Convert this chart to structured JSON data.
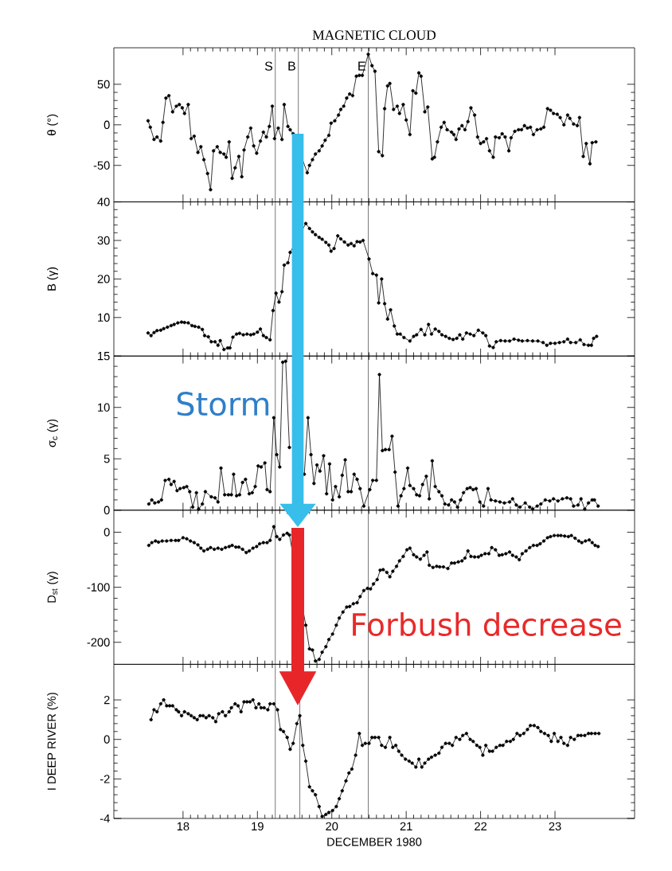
{
  "chart_data": [
    {
      "type": "line",
      "title": "MAGNETIC CLOUD",
      "ylabel": "θ (°)",
      "color": "#000000",
      "marker": "circle",
      "line_style": "solid",
      "tick_labels": "y",
      "xlim": [
        17.07,
        24.07
      ],
      "ylim": [
        -95,
        95
      ],
      "xticks": [
        18,
        19,
        20,
        21,
        22,
        23
      ],
      "yticks": [
        -50,
        0,
        50
      ],
      "ref_lines": [
        {
          "axis": "x",
          "value": 19.24,
          "label": "S"
        },
        {
          "axis": "x",
          "value": 19.55,
          "label": "B"
        },
        {
          "axis": "x",
          "value": 20.49,
          "label": "E"
        }
      ],
      "x": [
        17.53,
        17.56,
        17.61,
        17.65,
        17.7,
        17.73,
        17.77,
        17.81,
        17.86,
        17.91,
        17.95,
        17.99,
        18.02,
        18.07,
        18.11,
        18.15,
        18.2,
        18.24,
        18.28,
        18.33,
        18.37,
        18.41,
        18.46,
        18.5,
        18.55,
        18.58,
        18.62,
        18.66,
        18.7,
        18.75,
        18.79,
        18.82,
        18.87,
        18.91,
        18.95,
        18.99,
        19.04,
        19.08,
        19.12,
        19.16,
        19.2,
        19.23,
        19.28,
        19.33,
        19.36,
        19.41,
        19.44,
        19.48,
        19.67,
        19.7,
        19.74,
        19.78,
        19.83,
        19.87,
        19.91,
        19.96,
        19.99,
        20.04,
        20.09,
        20.12,
        20.16,
        20.2,
        20.24,
        20.28,
        20.33,
        20.37,
        20.41,
        20.49,
        20.54,
        20.58,
        20.63,
        20.68,
        20.71,
        20.75,
        20.78,
        20.83,
        20.88,
        20.91,
        20.96,
        21.0,
        21.05,
        21.09,
        21.13,
        21.17,
        21.2,
        21.25,
        21.29,
        21.35,
        21.38,
        21.42,
        21.47,
        21.51,
        21.55,
        21.61,
        21.64,
        21.67,
        21.71,
        21.75,
        21.79,
        21.83,
        21.87,
        21.92,
        21.96,
        22.0,
        22.04,
        22.08,
        22.12,
        22.17,
        22.2,
        22.25,
        22.29,
        22.33,
        22.38,
        22.41,
        22.46,
        22.51,
        22.55,
        22.59,
        22.63,
        22.67,
        22.71,
        22.76,
        22.81,
        22.85,
        22.9,
        22.94,
        22.98,
        23.03,
        23.07,
        23.12,
        23.17,
        23.2,
        23.25,
        23.3,
        23.33,
        23.38,
        23.42,
        23.47,
        23.5,
        23.55
      ],
      "values": [
        5,
        -3,
        -18,
        -15,
        -20,
        3,
        33,
        36,
        16,
        23,
        25,
        21,
        14,
        25,
        -17,
        -14,
        -34,
        -27,
        -43,
        -60,
        -80,
        -32,
        -27,
        -34,
        -36,
        -40,
        -21,
        -66,
        -53,
        -39,
        -64,
        -31,
        -15,
        -4,
        -26,
        -35,
        -20,
        -9,
        -15,
        -2,
        23,
        -17,
        -4,
        -18,
        25,
        -2,
        -6,
        -11,
        -59,
        -50,
        -43,
        -36,
        -32,
        -26,
        -19,
        -13,
        2,
        5,
        12,
        19,
        23,
        33,
        38,
        36,
        60,
        61,
        61,
        87,
        73,
        66,
        -33,
        -38,
        20,
        48,
        51,
        19,
        23,
        14,
        25,
        6,
        -12,
        42,
        39,
        64,
        60,
        16,
        22,
        -42,
        -40,
        -21,
        -3,
        3,
        -6,
        -9,
        -12,
        -18,
        -5,
        -1,
        -6,
        4,
        21,
        12,
        -15,
        -23,
        -21,
        -17,
        -32,
        -40,
        -15,
        -16,
        -11,
        -15,
        -32,
        -16,
        -8,
        -6,
        -6,
        -1,
        -4,
        -3,
        -12,
        -6,
        -5,
        -3,
        20,
        18,
        14,
        13,
        9,
        0,
        12,
        8,
        1,
        -1,
        9,
        -39,
        -23,
        -48,
        -22,
        -21
      ]
    },
    {
      "type": "line",
      "ylabel": "B (γ)",
      "color": "#000000",
      "marker": "circle",
      "line_style": "solid",
      "tick_labels": "y",
      "xlim": [
        17.07,
        24.07
      ],
      "ylim": [
        0,
        40
      ],
      "xticks": [
        18,
        19,
        20,
        21,
        22,
        23
      ],
      "yticks": [
        10,
        20,
        30,
        40
      ],
      "ref_lines": [
        {
          "axis": "x",
          "value": 19.24
        },
        {
          "axis": "x",
          "value": 20.49
        }
      ],
      "x": [
        17.53,
        17.57,
        17.61,
        17.65,
        17.7,
        17.74,
        17.79,
        17.84,
        17.88,
        17.93,
        17.98,
        18.02,
        18.07,
        18.12,
        18.16,
        18.21,
        18.26,
        18.29,
        18.34,
        18.38,
        18.43,
        18.47,
        18.5,
        18.55,
        18.6,
        18.63,
        18.67,
        18.72,
        18.76,
        18.81,
        18.86,
        18.91,
        18.95,
        19.0,
        19.04,
        19.08,
        19.12,
        19.17,
        19.21,
        19.25,
        19.29,
        19.33,
        19.36,
        19.41,
        19.44,
        19.65,
        19.7,
        19.74,
        19.78,
        19.83,
        19.87,
        19.92,
        19.96,
        19.99,
        20.03,
        20.08,
        20.12,
        20.17,
        20.22,
        20.26,
        20.3,
        20.34,
        20.38,
        20.42,
        20.5,
        20.55,
        20.6,
        20.63,
        20.67,
        20.71,
        20.75,
        20.79,
        20.84,
        20.88,
        20.92,
        20.97,
        21.05,
        21.1,
        21.14,
        21.2,
        21.25,
        21.3,
        21.34,
        21.39,
        21.44,
        21.48,
        21.53,
        21.58,
        21.63,
        21.68,
        21.72,
        21.76,
        21.81,
        21.86,
        21.91,
        21.97,
        22.03,
        22.07,
        22.12,
        22.17,
        22.21,
        22.27,
        22.33,
        22.39,
        22.45,
        22.51,
        22.56,
        22.63,
        22.7,
        22.77,
        22.84,
        22.89,
        22.94,
        23.0,
        23.06,
        23.12,
        23.17,
        23.21,
        23.28,
        23.34,
        23.39,
        23.45,
        23.49,
        23.52,
        23.56
      ],
      "values": [
        6.0,
        5.3,
        6.1,
        6.6,
        6.7,
        7.1,
        7.5,
        7.9,
        8.2,
        8.6,
        8.8,
        8.7,
        8.6,
        7.9,
        7.7,
        7.5,
        6.9,
        5.3,
        5.0,
        3.7,
        3.7,
        2.8,
        4.0,
        1.7,
        2.1,
        2.1,
        4.9,
        5.7,
        5.9,
        5.5,
        5.7,
        5.5,
        5.7,
        6.2,
        7.0,
        5.3,
        4.8,
        4.2,
        11.8,
        16.3,
        14.0,
        16.7,
        23.6,
        24.2,
        26.9,
        34.4,
        33.1,
        32.2,
        31.5,
        30.8,
        30.3,
        29.5,
        28.8,
        27.2,
        27.9,
        31.2,
        30.4,
        29.6,
        28.8,
        29.2,
        28.6,
        29.7,
        29.6,
        30.0,
        25.2,
        21.4,
        21.0,
        13.8,
        20.0,
        13.6,
        9.6,
        12.0,
        7.8,
        5.7,
        5.7,
        4.8,
        3.9,
        5.1,
        5.5,
        6.9,
        5.5,
        8.2,
        5.7,
        7.0,
        6.4,
        5.5,
        5.1,
        4.6,
        4.3,
        4.6,
        5.5,
        4.4,
        6.0,
        5.7,
        5.3,
        6.7,
        6.0,
        5.3,
        2.6,
        2.2,
        3.7,
        4.0,
        3.9,
        3.9,
        4.4,
        4.1,
        3.9,
        4.0,
        3.9,
        3.9,
        3.5,
        2.8,
        3.3,
        3.3,
        3.5,
        3.7,
        4.4,
        3.5,
        3.5,
        4.2,
        3.0,
        2.8,
        2.8,
        4.6,
        5.1
      ]
    },
    {
      "type": "line",
      "ylabel": "σ$_{c}$ (γ)",
      "color": "#000000",
      "marker": "circle",
      "line_style": "solid",
      "tick_labels": "y",
      "xlim": [
        17.07,
        24.07
      ],
      "ylim": [
        0,
        15
      ],
      "xticks": [
        18,
        19,
        20,
        21,
        22,
        23
      ],
      "yticks": [
        0,
        5,
        10,
        15
      ],
      "ref_lines": [
        {
          "axis": "x",
          "value": 19.24
        },
        {
          "axis": "x",
          "value": 20.49
        }
      ],
      "annotations": [
        "Storm"
      ],
      "x": [
        17.54,
        17.58,
        17.62,
        17.67,
        17.71,
        17.76,
        17.81,
        17.84,
        17.88,
        17.92,
        17.96,
        18.01,
        18.05,
        18.09,
        18.13,
        18.18,
        18.21,
        18.26,
        18.3,
        18.38,
        18.43,
        18.47,
        18.51,
        18.56,
        18.61,
        18.65,
        18.68,
        18.72,
        18.76,
        18.8,
        18.84,
        18.89,
        18.93,
        18.97,
        19.01,
        19.05,
        19.1,
        19.13,
        19.17,
        19.22,
        19.26,
        19.3,
        19.34,
        19.38,
        19.43,
        19.47,
        19.63,
        19.68,
        19.72,
        19.76,
        19.8,
        19.84,
        19.89,
        19.93,
        19.97,
        20.01,
        20.05,
        20.1,
        20.14,
        20.18,
        20.22,
        20.26,
        20.3,
        20.34,
        20.38,
        20.43,
        20.51,
        20.55,
        20.6,
        20.64,
        20.68,
        20.72,
        20.77,
        20.81,
        20.85,
        20.89,
        20.93,
        20.97,
        21.02,
        21.05,
        21.1,
        21.14,
        21.18,
        21.22,
        21.27,
        21.31,
        21.35,
        21.39,
        21.44,
        21.48,
        21.52,
        21.57,
        21.61,
        21.65,
        21.69,
        21.73,
        21.77,
        21.82,
        21.86,
        21.9,
        21.94,
        21.99,
        22.04,
        22.1,
        22.14,
        22.2,
        22.26,
        22.32,
        22.39,
        22.43,
        22.48,
        22.53,
        22.6,
        22.66,
        22.7,
        22.76,
        22.81,
        22.87,
        22.93,
        22.98,
        23.04,
        23.1,
        23.16,
        23.21,
        23.25,
        23.31,
        23.35,
        23.4,
        23.45,
        23.5,
        23.53,
        23.58
      ],
      "values": [
        0.6,
        1.0,
        0.7,
        0.8,
        1.0,
        2.9,
        3.0,
        2.5,
        2.8,
        1.9,
        2.1,
        2.2,
        2.3,
        1.8,
        0.3,
        1.7,
        0.1,
        0.6,
        1.8,
        1.3,
        1.2,
        0.8,
        4.1,
        1.5,
        1.5,
        1.5,
        3.5,
        1.4,
        1.5,
        2.7,
        3.0,
        1.6,
        1.7,
        2.3,
        4.3,
        4.2,
        4.6,
        2.0,
        1.8,
        9.0,
        5.4,
        4.2,
        14.4,
        14.5,
        6.1,
        null,
        3.5,
        9.0,
        5.4,
        2.6,
        4.4,
        3.8,
        5.3,
        1.6,
        4.5,
        1.0,
        2.3,
        1.3,
        3.4,
        4.9,
        1.8,
        1.8,
        3.5,
        3.0,
        2.1,
        0.4,
        2.0,
        2.9,
        2.9,
        13.2,
        5.8,
        5.9,
        5.9,
        7.2,
        3.7,
        0.4,
        1.4,
        2.1,
        4.1,
        2.4,
        2.1,
        1.5,
        1.4,
        2.5,
        3.3,
        1.1,
        4.8,
        2.3,
        1.8,
        1.4,
        0.6,
        0.5,
        1.0,
        0.8,
        0.3,
        1.0,
        1.7,
        2.1,
        2.2,
        2.0,
        2.1,
        0.8,
        0.4,
        2.1,
        1.0,
        0.9,
        0.8,
        0.7,
        0.8,
        1.1,
        0.5,
        0.3,
        0.7,
        0.3,
        0.1,
        0.4,
        0.6,
        1.0,
        0.9,
        1.1,
        0.9,
        1.1,
        1.2,
        1.1,
        0.4,
        0.5,
        1.1,
        0.1,
        0.7,
        1.0,
        1.0,
        0.4
      ]
    },
    {
      "type": "line",
      "ylabel": "D$_{st}$ (γ)",
      "color": "#000000",
      "marker": "circle",
      "line_style": "solid",
      "tick_labels": "y",
      "xlim": [
        17.07,
        24.07
      ],
      "ylim": [
        -240,
        40
      ],
      "xticks": [
        18,
        19,
        20,
        21,
        22,
        23
      ],
      "yticks": [
        -200,
        -100,
        0
      ],
      "ref_lines": [
        {
          "axis": "x",
          "value": 19.24
        },
        {
          "axis": "x",
          "value": 20.49
        }
      ],
      "annotations": [
        "Forbush decrease"
      ],
      "x": [
        17.54,
        17.58,
        17.63,
        17.67,
        17.72,
        17.78,
        17.84,
        17.9,
        17.94,
        18.0,
        18.05,
        18.1,
        18.15,
        18.2,
        18.24,
        18.28,
        18.33,
        18.37,
        18.42,
        18.47,
        18.52,
        18.57,
        18.62,
        18.66,
        18.71,
        18.75,
        18.8,
        18.85,
        18.89,
        18.94,
        18.99,
        19.03,
        19.08,
        19.13,
        19.17,
        19.22,
        19.26,
        19.3,
        19.35,
        19.4,
        19.43,
        19.65,
        19.7,
        19.74,
        19.78,
        19.83,
        19.87,
        19.92,
        19.96,
        20.01,
        20.06,
        20.1,
        20.15,
        20.2,
        20.24,
        20.29,
        20.34,
        20.38,
        20.43,
        20.48,
        20.52,
        20.56,
        20.61,
        20.65,
        20.69,
        20.74,
        20.78,
        20.82,
        20.87,
        20.91,
        20.96,
        21.01,
        21.05,
        21.1,
        21.14,
        21.19,
        21.24,
        21.28,
        21.31,
        21.36,
        21.41,
        21.45,
        21.5,
        21.56,
        21.61,
        21.65,
        21.7,
        21.75,
        21.79,
        21.83,
        21.87,
        21.92,
        21.97,
        22.01,
        22.06,
        22.11,
        22.15,
        22.2,
        22.25,
        22.29,
        22.34,
        22.39,
        22.43,
        22.48,
        22.52,
        22.56,
        22.61,
        22.66,
        22.71,
        22.76,
        22.8,
        22.85,
        22.9,
        22.94,
        22.99,
        23.04,
        23.08,
        23.13,
        23.18,
        23.22,
        23.27,
        23.32,
        23.36,
        23.41,
        23.46,
        23.5,
        23.54,
        23.58
      ],
      "values": [
        -24,
        -19,
        -16,
        -18,
        -16,
        -16,
        -15,
        -15,
        -15,
        -10,
        -12,
        -16,
        -19,
        -23,
        -29,
        -34,
        -31,
        -28,
        -31,
        -29,
        -31,
        -28,
        -26,
        -24,
        -27,
        -27,
        -31,
        -37,
        -34,
        -29,
        -26,
        -21,
        -19,
        -19,
        -15,
        10,
        -8,
        -13,
        -5,
        -2,
        -5,
        -169,
        -212,
        -214,
        -234,
        -231,
        -218,
        -208,
        -195,
        -185,
        -169,
        -156,
        -145,
        -136,
        -135,
        -130,
        -128,
        -117,
        -106,
        -102,
        -103,
        -94,
        -86,
        -69,
        -68,
        -73,
        -81,
        -71,
        -62,
        -52,
        -44,
        -32,
        -29,
        -41,
        -45,
        -49,
        -42,
        -36,
        -60,
        -64,
        -62,
        -63,
        -63,
        -66,
        -56,
        -56,
        -54,
        -52,
        -47,
        -34,
        -44,
        -45,
        -45,
        -42,
        -39,
        -39,
        -28,
        -32,
        -42,
        -41,
        -39,
        -36,
        -42,
        -45,
        -50,
        -39,
        -34,
        -28,
        -24,
        -24,
        -21,
        -16,
        -10,
        -8,
        -6,
        -6,
        -6,
        -7,
        -8,
        -6,
        -11,
        -16,
        -19,
        -16,
        -14,
        -19,
        -24,
        -26
      ]
    },
    {
      "type": "line",
      "xlabel": "DECEMBER 1980",
      "ylabel": "I DEEP RIVER (%)",
      "color": "#000000",
      "marker": "circle",
      "line_style": "solid",
      "xlim": [
        17.07,
        24.07
      ],
      "ylim": [
        -4,
        3.8
      ],
      "xticks": [
        18,
        19,
        20,
        21,
        22,
        23
      ],
      "yticks": [
        -4,
        -2,
        0,
        2
      ],
      "ref_lines": [
        {
          "axis": "x",
          "value": 19.24
        },
        {
          "axis": "x",
          "value": 19.57
        },
        {
          "axis": "x",
          "value": 20.49
        }
      ],
      "x": [
        17.57,
        17.61,
        17.65,
        17.7,
        17.74,
        17.78,
        17.82,
        17.86,
        17.91,
        17.94,
        17.98,
        18.02,
        18.07,
        18.11,
        18.15,
        18.19,
        18.23,
        18.27,
        18.31,
        18.35,
        18.4,
        18.44,
        18.48,
        18.53,
        18.57,
        18.62,
        18.65,
        18.7,
        18.74,
        18.78,
        18.82,
        18.86,
        18.9,
        18.94,
        18.98,
        19.02,
        19.05,
        19.09,
        19.14,
        19.17,
        19.22,
        19.27,
        19.31,
        19.35,
        19.4,
        19.44,
        19.48,
        19.53,
        19.57,
        19.61,
        19.65,
        19.7,
        19.74,
        19.78,
        19.83,
        19.87,
        19.92,
        19.96,
        20.01,
        20.06,
        20.1,
        20.14,
        20.19,
        20.23,
        20.27,
        20.32,
        20.37,
        20.41,
        20.45,
        20.5,
        20.54,
        20.58,
        20.63,
        20.67,
        20.72,
        20.78,
        20.82,
        20.86,
        20.9,
        20.94,
        20.99,
        21.04,
        21.08,
        21.13,
        21.17,
        21.21,
        21.25,
        21.3,
        21.34,
        21.39,
        21.44,
        21.48,
        21.53,
        21.58,
        21.62,
        21.67,
        21.72,
        21.76,
        21.81,
        21.86,
        21.9,
        21.95,
        21.99,
        22.03,
        22.07,
        22.12,
        22.16,
        22.21,
        22.26,
        22.3,
        22.35,
        22.4,
        22.44,
        22.49,
        22.53,
        22.58,
        22.63,
        22.67,
        22.72,
        22.77,
        22.81,
        22.86,
        22.91,
        22.95,
        22.99,
        23.04,
        23.08,
        23.12,
        23.17,
        23.21,
        23.26,
        23.31,
        23.35,
        23.4,
        23.45,
        23.49,
        23.54,
        23.59
      ],
      "values": [
        1.0,
        1.5,
        1.4,
        1.8,
        2.0,
        1.7,
        1.7,
        1.7,
        1.5,
        1.4,
        1.2,
        1.4,
        1.3,
        1.2,
        1.1,
        1.0,
        1.2,
        1.2,
        1.1,
        1.2,
        1.1,
        0.9,
        1.3,
        1.4,
        1.2,
        1.4,
        1.6,
        1.8,
        1.7,
        1.4,
        1.9,
        1.9,
        1.9,
        2.0,
        1.6,
        1.8,
        1.6,
        1.6,
        1.5,
        1.8,
        1.8,
        1.5,
        0.5,
        0.4,
        0.1,
        -0.5,
        -0.2,
        0.8,
        1.2,
        -0.3,
        -1.1,
        -2.4,
        -2.6,
        -2.8,
        -3.4,
        -3.9,
        -3.8,
        -3.7,
        -3.6,
        -3.4,
        -3.0,
        -2.6,
        -2.1,
        -1.7,
        -1.5,
        -0.8,
        0.3,
        -0.3,
        -0.2,
        -0.2,
        0.1,
        0.1,
        0.1,
        -0.3,
        -0.4,
        0.1,
        -0.4,
        -0.3,
        -0.6,
        -0.8,
        -1.0,
        -1.1,
        -1.2,
        -1.4,
        -1.0,
        -1.4,
        -1.2,
        -1.0,
        -0.9,
        -0.8,
        -0.7,
        -0.4,
        -0.2,
        -0.2,
        -0.3,
        0.1,
        0.0,
        0.2,
        0.3,
        0.0,
        -0.1,
        -0.3,
        -0.4,
        -0.8,
        -0.3,
        -0.6,
        -0.6,
        -0.4,
        -0.3,
        -0.3,
        -0.1,
        -0.1,
        0.0,
        0.3,
        0.2,
        0.3,
        0.5,
        0.7,
        0.7,
        0.6,
        0.4,
        0.3,
        0.2,
        -0.1,
        0.3,
        -0.1,
        0.1,
        -0.2,
        -0.3,
        0.1,
        0.0,
        0.2,
        0.2,
        0.2,
        0.3,
        0.3,
        0.3,
        0.3
      ]
    }
  ]
}
